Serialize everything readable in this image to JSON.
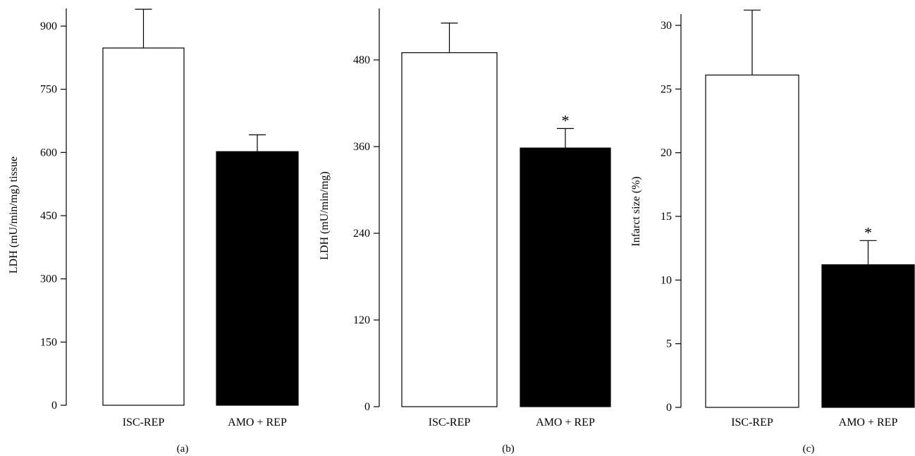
{
  "chart_data": [
    {
      "type": "bar",
      "panel_label": "(a)",
      "ylabel": "LDH (mU/min/mg) tissue",
      "ylim": [
        0,
        900
      ],
      "yticks": [
        0,
        150,
        300,
        450,
        600,
        750,
        900
      ],
      "categories": [
        "ISC-REP",
        "AMO + REP"
      ],
      "values": [
        848,
        602
      ],
      "errors": [
        92,
        40
      ],
      "bar_colors": [
        "#ffffff",
        "#000000"
      ],
      "significance": [
        "",
        ""
      ]
    },
    {
      "type": "bar",
      "panel_label": "(b)",
      "ylabel": "LDH (mU/min/mg)",
      "ylim": [
        0,
        480
      ],
      "yticks": [
        0,
        120,
        240,
        360,
        480
      ],
      "categories": [
        "ISC-REP",
        "AMO + REP"
      ],
      "values": [
        490,
        358
      ],
      "errors": [
        41,
        27
      ],
      "bar_colors": [
        "#ffffff",
        "#000000"
      ],
      "significance": [
        "",
        "*"
      ]
    },
    {
      "type": "bar",
      "panel_label": "(c)",
      "ylabel": "Infarct size (%)",
      "ylim": [
        0,
        30
      ],
      "yticks": [
        0,
        5,
        10,
        15,
        20,
        25,
        30
      ],
      "categories": [
        "ISC-REP",
        "AMO + REP"
      ],
      "values": [
        26.1,
        11.2
      ],
      "errors": [
        5.1,
        1.9
      ],
      "bar_colors": [
        "#ffffff",
        "#000000"
      ],
      "significance": [
        "",
        "*"
      ]
    }
  ]
}
